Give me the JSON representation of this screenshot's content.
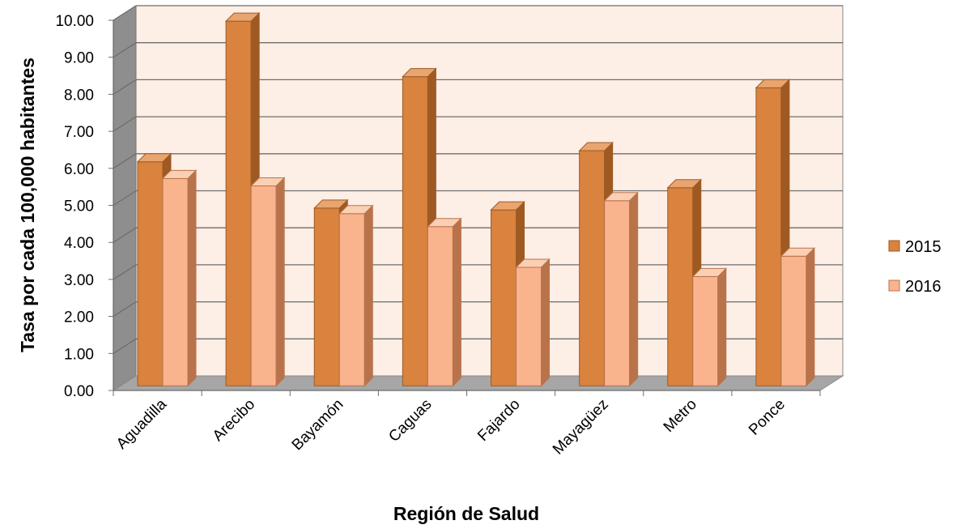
{
  "chart_data": {
    "type": "bar",
    "categories": [
      "Aguadilla",
      "Arecibo",
      "Bayamón",
      "Caguas",
      "Fajardo",
      "Mayagüez",
      "Metro",
      "Ponce"
    ],
    "series": [
      {
        "name": "2015",
        "values": [
          6.05,
          9.85,
          4.8,
          8.35,
          4.75,
          6.35,
          5.35,
          8.05
        ],
        "color": "#D9833F",
        "side_color": "#9E5A22",
        "top_color": "#E8A570"
      },
      {
        "name": "2016",
        "values": [
          5.6,
          5.4,
          4.65,
          4.3,
          3.2,
          5.0,
          2.95,
          3.5
        ],
        "color": "#F9B48E",
        "side_color": "#B9734A",
        "top_color": "#FBCFB3"
      }
    ],
    "title": "",
    "xlabel": "Región de Salud",
    "ylabel": "Tasa por cada 100,000 habitantes",
    "ylim": [
      0,
      10
    ],
    "yticks": [
      "0.00",
      "1.00",
      "2.00",
      "3.00",
      "4.00",
      "5.00",
      "6.00",
      "7.00",
      "8.00",
      "9.00",
      "10.00"
    ],
    "grid": true,
    "legend_position": "right",
    "plot_background": "#FDEEE6"
  }
}
